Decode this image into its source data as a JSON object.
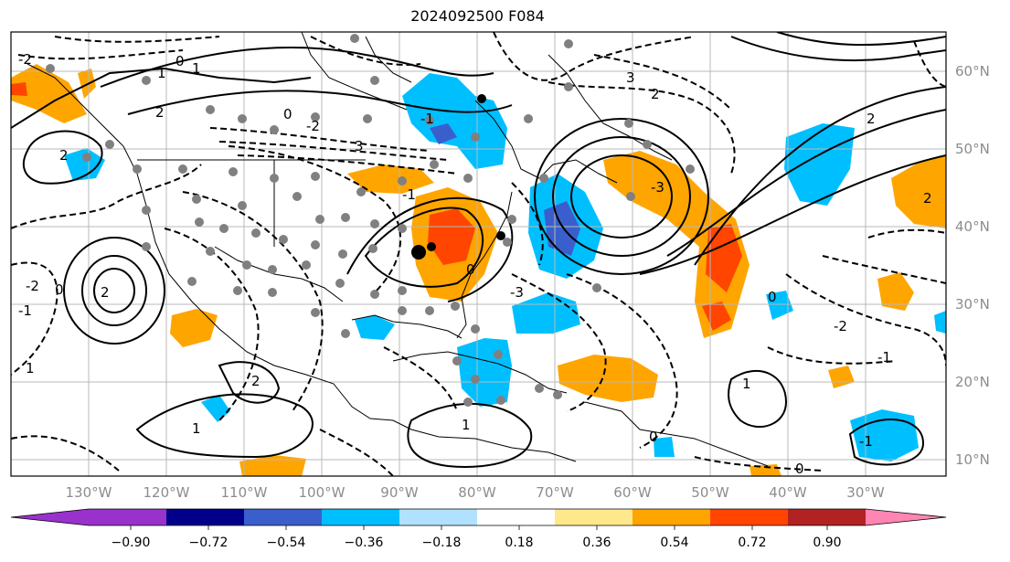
{
  "title": "2024092500 F084",
  "map": {
    "lon_labels": [
      "130°W",
      "120°W",
      "110°W",
      "100°W",
      "90°W",
      "80°W",
      "70°W",
      "60°W",
      "50°W",
      "40°W",
      "30°W"
    ],
    "lat_labels": [
      "60°N",
      "50°N",
      "40°N",
      "30°N",
      "20°N",
      "10°N"
    ],
    "contour_labels": [
      "-2",
      "0",
      "1",
      "2",
      "3",
      "-1",
      "2",
      "0",
      "-2",
      "1",
      "2",
      "-3",
      "3",
      "2",
      "-1",
      "-2",
      "1",
      "0",
      "2",
      "-3",
      "2",
      "-1",
      "0",
      "1",
      "0",
      "-1",
      "1",
      "2",
      "0",
      "-1",
      "1",
      "0",
      "-2"
    ],
    "colors": {
      "ocean": "#ffffff",
      "grid": "#b8b8b8",
      "coast": "#000000",
      "axis_label": "#8c8c8c"
    }
  },
  "colorbar": {
    "colors": [
      "#9932cc",
      "#00008b",
      "#3a5fcd",
      "#00bfff",
      "#b0e2ff",
      "#ffffff",
      "#ffe88c",
      "#ffa500",
      "#ff4500",
      "#b22222",
      "#ff85b3"
    ],
    "ticks": [
      "−0.90",
      "−0.72",
      "−0.54",
      "−0.36",
      "−0.18",
      "0.18",
      "0.36",
      "0.54",
      "0.72",
      "0.90"
    ]
  }
}
